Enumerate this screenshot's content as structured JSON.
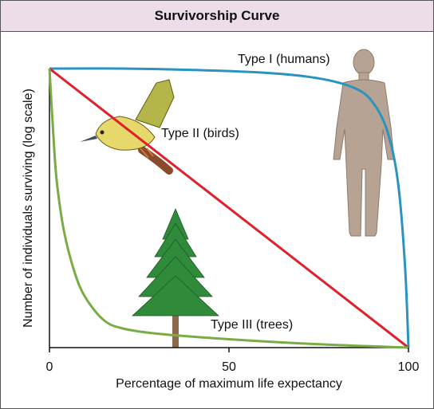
{
  "chart_data": {
    "type": "line",
    "title": "Survivorship Curve",
    "xlabel": "Percentage of maximum life expectancy",
    "ylabel": "Number of individuals surviving (log scale)",
    "xlim": [
      0,
      100
    ],
    "ylim": [
      0,
      1
    ],
    "x_ticks": [
      "0",
      "50",
      "100"
    ],
    "grid": false,
    "series": [
      {
        "name": "Type I (humans)",
        "color": "#2a93bf",
        "x": [
          0,
          20,
          40,
          60,
          75,
          85,
          90,
          94,
          97,
          99,
          100
        ],
        "y": [
          1.0,
          1.0,
          0.995,
          0.985,
          0.965,
          0.93,
          0.88,
          0.78,
          0.6,
          0.3,
          0.0
        ]
      },
      {
        "name": "Type II (birds)",
        "color": "#e0202a",
        "x": [
          0,
          100
        ],
        "y": [
          1.0,
          0.0
        ]
      },
      {
        "name": "Type III (trees)",
        "color": "#7aac45",
        "x": [
          0,
          1,
          2,
          4,
          7,
          10,
          15,
          20,
          30,
          50,
          75,
          100
        ],
        "y": [
          1.0,
          0.78,
          0.6,
          0.42,
          0.27,
          0.18,
          0.1,
          0.07,
          0.05,
          0.03,
          0.012,
          0.0
        ]
      }
    ]
  }
}
